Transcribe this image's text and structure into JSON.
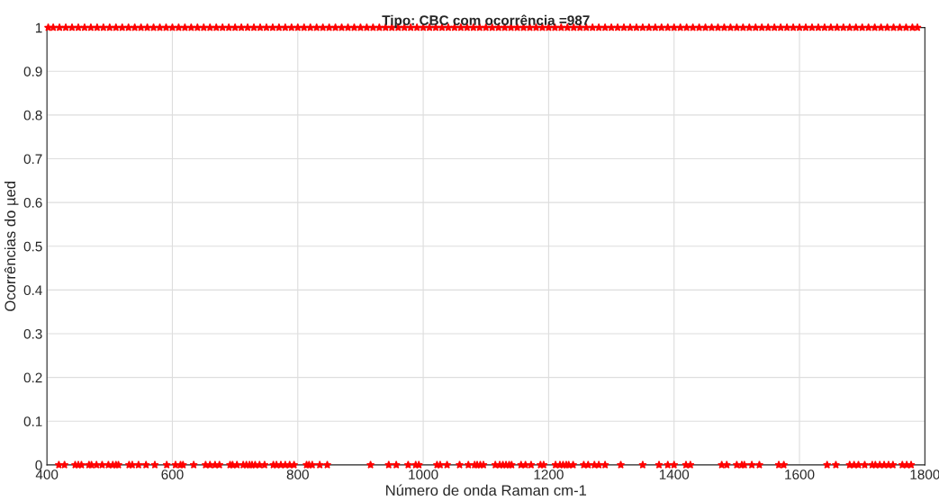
{
  "chart_data": {
    "type": "scatter",
    "title": "Tipo: CBC com ocorrência =987",
    "xlabel": "Número de onda Raman cm-1",
    "ylabel": "Ocorrências do µed",
    "series": [
      {
        "color": "#ff0000",
        "x": [
          402,
          410,
          420,
          430,
          440,
          450,
          460,
          470,
          480,
          490,
          500,
          510,
          520,
          530,
          540,
          550,
          560,
          570,
          580,
          590,
          600,
          610,
          620,
          630,
          640,
          650,
          660,
          670,
          680,
          690,
          700,
          710,
          720,
          730,
          740,
          750,
          760,
          770,
          780,
          790,
          800,
          810,
          820,
          830,
          840,
          850,
          860,
          870,
          880,
          890,
          900,
          910,
          920,
          930,
          940,
          950,
          960,
          970,
          980,
          990,
          1000,
          1010,
          1020,
          1030,
          1040,
          1050,
          1060,
          1070,
          1080,
          1090,
          1100,
          1110,
          1120,
          1130,
          1140,
          1150,
          1160,
          1170,
          1180,
          1190,
          1200,
          1210,
          1220,
          1230,
          1240,
          1250,
          1260,
          1270,
          1280,
          1290,
          1300,
          1310,
          1320,
          1330,
          1340,
          1350,
          1360,
          1370,
          1380,
          1390,
          1400,
          1410,
          1420,
          1430,
          1440,
          1450,
          1460,
          1470,
          1480,
          1490,
          1500,
          1510,
          1520,
          1530,
          1540,
          1550,
          1560,
          1570,
          1580,
          1590,
          1600,
          1610,
          1620,
          1630,
          1640,
          1650,
          1660,
          1670,
          1680,
          1690,
          1700,
          1710,
          1720,
          1730,
          1740,
          1750,
          1760,
          1770,
          1780,
          1788
        ],
        "values": [
          1,
          1,
          1,
          1,
          1,
          1,
          1,
          1,
          1,
          1,
          1,
          1,
          1,
          1,
          1,
          1,
          1,
          1,
          1,
          1,
          1,
          1,
          1,
          1,
          1,
          1,
          1,
          1,
          1,
          1,
          1,
          1,
          1,
          1,
          1,
          1,
          1,
          1,
          1,
          1,
          1,
          1,
          1,
          1,
          1,
          1,
          1,
          1,
          1,
          1,
          1,
          1,
          1,
          1,
          1,
          1,
          1,
          1,
          1,
          1,
          1,
          1,
          1,
          1,
          1,
          1,
          1,
          1,
          1,
          1,
          1,
          1,
          1,
          1,
          1,
          1,
          1,
          1,
          1,
          1,
          1,
          1,
          1,
          1,
          1,
          1,
          1,
          1,
          1,
          1,
          1,
          1,
          1,
          1,
          1,
          1,
          1,
          1,
          1,
          1,
          1,
          1,
          1,
          1,
          1,
          1,
          1,
          1,
          1,
          1,
          1,
          1,
          1,
          1,
          1,
          1,
          1,
          1,
          1,
          1,
          1,
          1,
          1,
          1,
          1,
          1,
          1,
          1,
          1,
          1,
          1,
          1,
          1,
          1,
          1,
          1,
          1,
          1,
          1,
          1
        ]
      },
      {
        "color": "#ff0000",
        "x": [
          419,
          428,
          445,
          450,
          455,
          467,
          471,
          479,
          488,
          498,
          505,
          510,
          514,
          531,
          536,
          546,
          558,
          572,
          591,
          605,
          613,
          617,
          634,
          653,
          660,
          668,
          675,
          692,
          696,
          703,
          713,
          718,
          723,
          727,
          732,
          739,
          747,
          761,
          766,
          773,
          780,
          787,
          794,
          814,
          818,
          823,
          835,
          847,
          916,
          945,
          957,
          976,
          988,
          993,
          1022,
          1027,
          1038,
          1058,
          1072,
          1082,
          1086,
          1091,
          1096,
          1115,
          1122,
          1127,
          1132,
          1137,
          1141,
          1156,
          1163,
          1172,
          1187,
          1192,
          1211,
          1218,
          1223,
          1228,
          1232,
          1239,
          1256,
          1263,
          1273,
          1280,
          1290,
          1315,
          1350,
          1376,
          1390,
          1400,
          1419,
          1426,
          1476,
          1484,
          1500,
          1508,
          1512,
          1524,
          1536,
          1567,
          1575,
          1644,
          1658,
          1680,
          1687,
          1694,
          1704,
          1716,
          1721,
          1728,
          1735,
          1742,
          1749,
          1764,
          1771,
          1778
        ],
        "values": [
          0,
          0,
          0,
          0,
          0,
          0,
          0,
          0,
          0,
          0,
          0,
          0,
          0,
          0,
          0,
          0,
          0,
          0,
          0,
          0,
          0,
          0,
          0,
          0,
          0,
          0,
          0,
          0,
          0,
          0,
          0,
          0,
          0,
          0,
          0,
          0,
          0,
          0,
          0,
          0,
          0,
          0,
          0,
          0,
          0,
          0,
          0,
          0,
          0,
          0,
          0,
          0,
          0,
          0,
          0,
          0,
          0,
          0,
          0,
          0,
          0,
          0,
          0,
          0,
          0,
          0,
          0,
          0,
          0,
          0,
          0,
          0,
          0,
          0,
          0,
          0,
          0,
          0,
          0,
          0,
          0,
          0,
          0,
          0,
          0,
          0,
          0,
          0,
          0,
          0,
          0,
          0,
          0,
          0,
          0,
          0,
          0,
          0,
          0,
          0,
          0,
          0,
          0,
          0,
          0,
          0,
          0,
          0,
          0,
          0,
          0,
          0,
          0,
          0,
          0,
          0
        ]
      }
    ],
    "marker": "star",
    "grid": true,
    "xlim": [
      400,
      1800
    ],
    "xticks": [
      400,
      600,
      800,
      1000,
      1200,
      1400,
      1600,
      1800
    ],
    "ylim": [
      0,
      1
    ],
    "yticks": [
      0,
      0.1,
      0.2,
      0.3,
      0.4,
      0.5,
      0.6,
      0.7,
      0.8,
      0.9,
      1
    ]
  }
}
